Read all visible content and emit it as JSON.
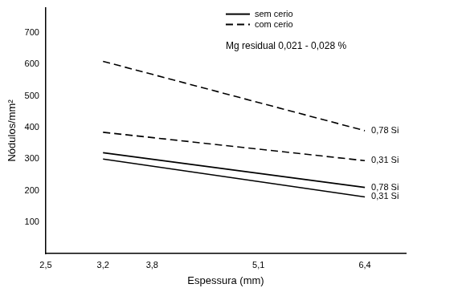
{
  "chart_data": {
    "type": "line",
    "x_label": "Espessura (mm)",
    "y_label": "Nódulos/mm²",
    "annotations": [
      "Mg residual 0,021 - 0,028 %"
    ],
    "legend": "upper right",
    "legend_entries": [
      {
        "label": "sem cerio",
        "line_style": "solid",
        "color": "#000000"
      },
      {
        "label": "com cerio",
        "line_style": "dashed",
        "color": "#000000"
      }
    ],
    "x": [
      3.2,
      6.4
    ],
    "series": [
      {
        "name": "0,78 Si",
        "color": "#000000",
        "line_style": "dashed",
        "marker": "none",
        "values": [
          610,
          390
        ]
      },
      {
        "name": "0,31 Si",
        "color": "#000000",
        "line_style": "dashed",
        "marker": "none",
        "values": [
          385,
          295
        ]
      },
      {
        "name": "0,78 Si",
        "color": "#000000",
        "line_style": "solid",
        "marker": "none",
        "values": [
          320,
          210
        ]
      },
      {
        "name": "0,31 Si",
        "color": "#000000",
        "line_style": "solid",
        "marker": "none",
        "values": [
          300,
          180
        ]
      }
    ],
    "xlim": [
      2.5,
      6.9
    ],
    "xticks": [
      {
        "value": 2.5,
        "label": "2,5"
      },
      {
        "value": 3.2,
        "label": "3,2"
      },
      {
        "value": 3.8,
        "label": "3,8"
      },
      {
        "value": 5.1,
        "label": "5,1"
      },
      {
        "value": 6.4,
        "label": "6,4"
      }
    ],
    "ylim": [
      0,
      780
    ],
    "yticks": [
      100,
      200,
      300,
      400,
      500,
      600,
      700
    ],
    "grid": false
  }
}
